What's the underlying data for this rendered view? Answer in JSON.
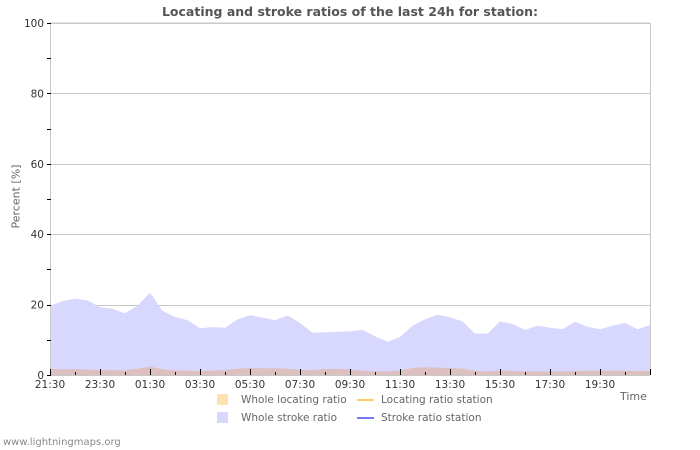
{
  "chart_data": {
    "type": "area",
    "title": "Locating and stroke ratios of the last 24h for station:",
    "xlabel": "Time",
    "ylabel": "Percent   [%]",
    "ylim": [
      0,
      100
    ],
    "yticks": [
      0,
      20,
      40,
      60,
      80,
      100
    ],
    "xticks": [
      "21:30",
      "23:30",
      "01:30",
      "03:30",
      "05:30",
      "07:30",
      "09:30",
      "11:30",
      "13:30",
      "15:30",
      "17:30",
      "19:30"
    ],
    "grid": true,
    "legend_position": "bottom",
    "x": [
      "21:30",
      "22:00",
      "22:30",
      "23:00",
      "23:30",
      "00:00",
      "00:30",
      "01:00",
      "01:30",
      "02:00",
      "02:30",
      "03:00",
      "03:30",
      "04:00",
      "04:30",
      "05:00",
      "05:30",
      "06:00",
      "06:30",
      "07:00",
      "07:30",
      "08:00",
      "08:30",
      "09:00",
      "09:30",
      "10:00",
      "10:30",
      "11:00",
      "11:30",
      "12:00",
      "12:30",
      "13:00",
      "13:30",
      "14:00",
      "14:30",
      "15:00",
      "15:30",
      "16:00",
      "16:30",
      "17:00",
      "17:30",
      "18:00",
      "18:30",
      "19:00",
      "19:30",
      "20:00",
      "20:30",
      "21:00",
      "21:30"
    ],
    "series": [
      {
        "name": "Whole stroke ratio",
        "kind": "area",
        "color": "#d8d8ff",
        "values": [
          19.7,
          21.0,
          21.7,
          21.2,
          19.3,
          18.8,
          17.5,
          19.7,
          23.4,
          18.2,
          16.5,
          15.6,
          13.3,
          13.6,
          13.4,
          15.8,
          17.0,
          16.3,
          15.6,
          16.9,
          14.8,
          12.0,
          12.1,
          12.3,
          12.4,
          12.8,
          11.0,
          9.5,
          10.8,
          14.0,
          15.8,
          17.1,
          16.4,
          15.2,
          11.8,
          11.8,
          15.2,
          14.5,
          12.8,
          14.0,
          13.4,
          13.0,
          15.1,
          13.7,
          13.0,
          14.0,
          14.8,
          13.0,
          14.2
        ]
      },
      {
        "name": "Whole locating ratio",
        "kind": "area",
        "color": "#ffe0b0",
        "values": [
          1.8,
          1.6,
          1.7,
          1.5,
          1.4,
          1.3,
          1.4,
          1.8,
          2.4,
          1.6,
          1.3,
          1.2,
          1.1,
          1.2,
          1.4,
          1.8,
          2.0,
          1.9,
          1.9,
          1.8,
          1.5,
          1.4,
          1.7,
          1.8,
          1.6,
          1.2,
          1.0,
          1.0,
          1.3,
          2.0,
          2.2,
          2.1,
          2.0,
          1.8,
          1.2,
          1.0,
          1.3,
          1.1,
          1.0,
          1.0,
          1.0,
          1.0,
          1.1,
          1.2,
          1.2,
          1.2,
          1.2,
          1.1,
          1.2
        ]
      },
      {
        "name": "Locating ratio station",
        "kind": "line",
        "color": "#ffcc66",
        "values": []
      },
      {
        "name": "Stroke ratio station",
        "kind": "line",
        "color": "#7777ee",
        "values": []
      }
    ]
  },
  "legend": {
    "items": [
      {
        "label": "Whole locating ratio",
        "type": "box",
        "color": "#ffe0b0"
      },
      {
        "label": "Locating ratio station",
        "type": "line",
        "color": "#ffcc66"
      },
      {
        "label": "Whole stroke ratio",
        "type": "box",
        "color": "#d8d8ff"
      },
      {
        "label": "Stroke ratio station",
        "type": "line",
        "color": "#7777ee"
      }
    ]
  },
  "footer": {
    "text": "www.lightningmaps.org"
  },
  "colors": {
    "grid": "#c8c8c8",
    "axis": "#c8c8c8",
    "overlap": "#dcc0c0"
  }
}
